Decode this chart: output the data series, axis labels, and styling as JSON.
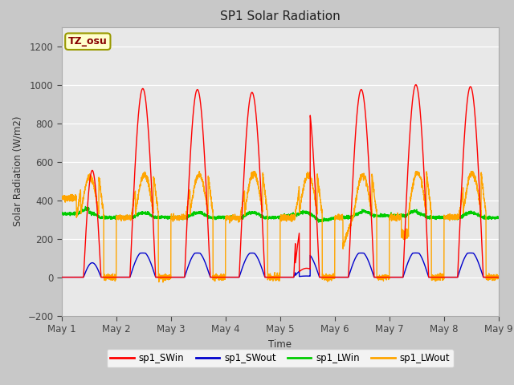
{
  "title": "SP1 Solar Radiation",
  "ylabel": "Solar Radiation (W/m2)",
  "xlabel": "Time",
  "ylim": [
    -200,
    1300
  ],
  "yticks": [
    -200,
    0,
    200,
    400,
    600,
    800,
    1000,
    1200
  ],
  "xtick_labels": [
    "May 1",
    "May 2",
    "May 3",
    "May 4",
    "May 5",
    "May 6",
    "May 7",
    "May 8",
    "May 9"
  ],
  "colors": {
    "SWin": "#ff0000",
    "SWout": "#0000cc",
    "LWin": "#00cc00",
    "LWout": "#ffa500"
  },
  "fig_bg": "#c8c8c8",
  "plot_bg": "#e8e8e8",
  "annotation_text": "TZ_osu",
  "annotation_bg": "#ffffcc",
  "annotation_border": "#999900"
}
